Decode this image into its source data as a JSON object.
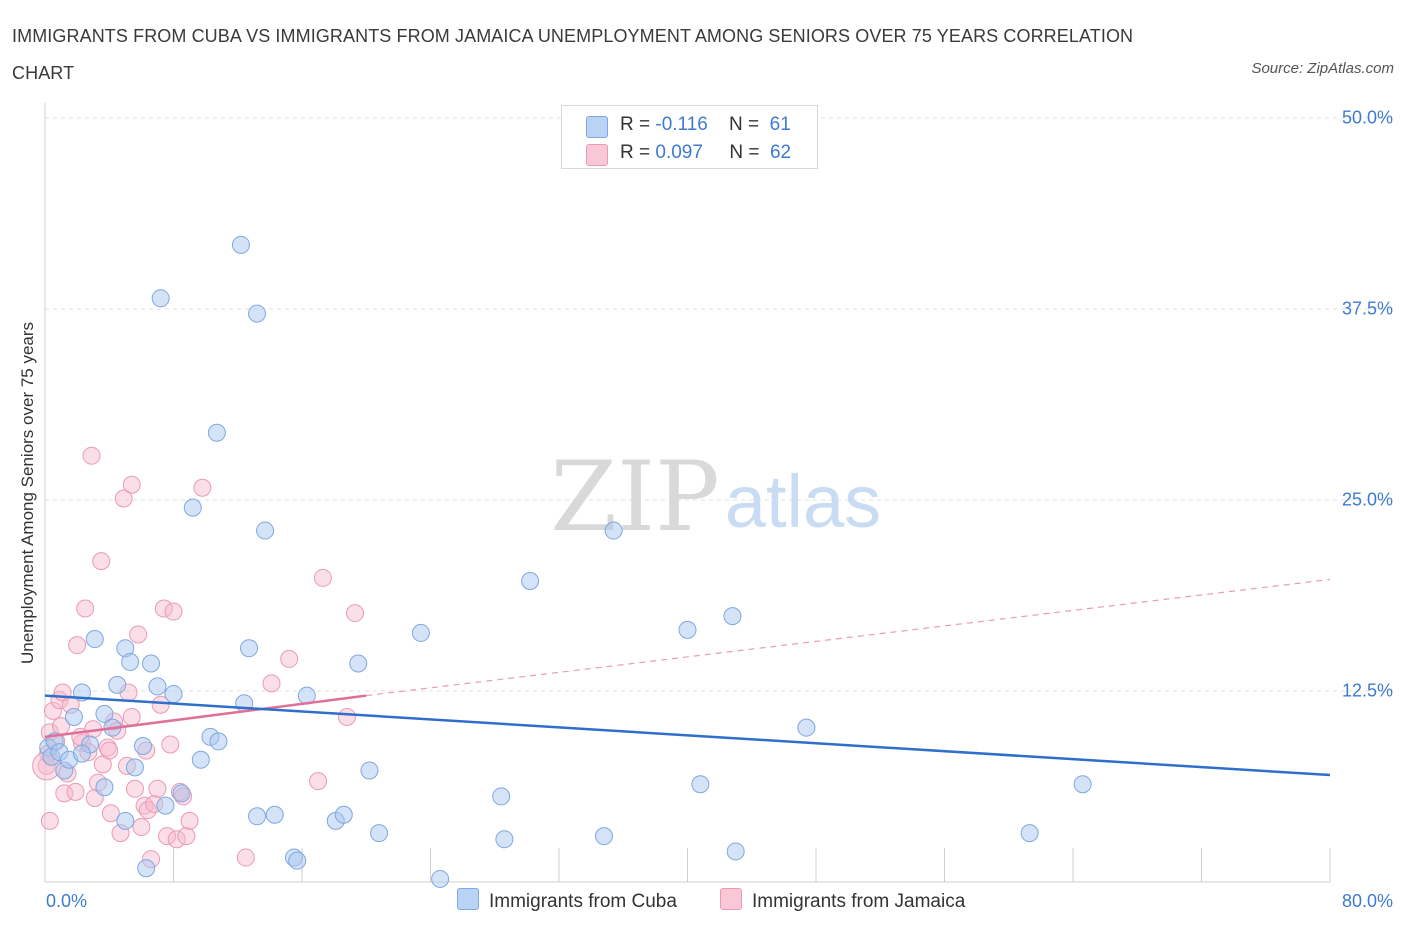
{
  "title": "IMMIGRANTS FROM CUBA VS IMMIGRANTS FROM JAMAICA UNEMPLOYMENT AMONG SENIORS OVER 75 YEARS CORRELATION CHART",
  "source": "Source: ZipAtlas.com",
  "watermark": {
    "zip": "ZIP",
    "atlas": "atlas"
  },
  "legend_top": {
    "cuba": {
      "r_label": "R = ",
      "r_value": "-0.116",
      "n_label": "N = ",
      "n_value": "61"
    },
    "jamaica": {
      "r_label": "R = ",
      "r_value": "0.097",
      "n_label": "N = ",
      "n_value": "62"
    }
  },
  "colors": {
    "cuba_fill": "#a9c8f0",
    "cuba_stroke": "#7fa8de",
    "cuba_line": "#2e6fcc",
    "jamaica_fill": "#f6b9cc",
    "jamaica_stroke": "#eb9ab4",
    "jamaica_line": "#e0709a",
    "tick_text": "#3e7bd0",
    "grid": "#e2e2e2"
  },
  "chart_data": {
    "type": "scatter",
    "title": "IMMIGRANTS FROM CUBA VS IMMIGRANTS FROM JAMAICA UNEMPLOYMENT AMONG SENIORS OVER 75 YEARS CORRELATION CHART",
    "xlabel": "",
    "ylabel": "Unemployment Among Seniors over 75 years",
    "xlim": [
      0,
      80
    ],
    "ylim": [
      0,
      50
    ],
    "x_tick_labels": [
      "0.0%",
      "80.0%"
    ],
    "y_ticks": [
      12.5,
      25.0,
      37.5,
      50.0
    ],
    "y_tick_labels": [
      "12.5%",
      "25.0%",
      "37.5%",
      "50.0%"
    ],
    "grid": true,
    "legend_position": "bottom-center",
    "series": [
      {
        "name": "Immigrants from Cuba",
        "R": -0.116,
        "N": 61,
        "trend": {
          "x": [
            0,
            80
          ],
          "y": [
            12.2,
            7.0
          ],
          "style": "solid"
        },
        "points": [
          [
            0.2,
            8.8
          ],
          [
            0.4,
            8.2
          ],
          [
            0.6,
            9.2
          ],
          [
            0.9,
            8.5
          ],
          [
            1.2,
            7.3
          ],
          [
            1.5,
            8.0
          ],
          [
            1.8,
            10.8
          ],
          [
            2.3,
            12.4
          ],
          [
            2.8,
            9.0
          ],
          [
            3.1,
            15.9
          ],
          [
            3.7,
            11.0
          ],
          [
            4.2,
            10.1
          ],
          [
            4.5,
            12.9
          ],
          [
            5.0,
            15.3
          ],
          [
            5.3,
            14.4
          ],
          [
            5.6,
            7.5
          ],
          [
            6.1,
            8.9
          ],
          [
            6.6,
            14.3
          ],
          [
            7.0,
            12.8
          ],
          [
            7.5,
            5.0
          ],
          [
            8.0,
            12.3
          ],
          [
            9.7,
            8.0
          ],
          [
            10.3,
            9.5
          ],
          [
            10.8,
            9.2
          ],
          [
            12.2,
            41.7
          ],
          [
            13.2,
            37.2
          ],
          [
            7.2,
            38.2
          ],
          [
            10.7,
            29.4
          ],
          [
            9.2,
            24.5
          ],
          [
            13.7,
            23.0
          ],
          [
            12.4,
            11.7
          ],
          [
            12.7,
            15.3
          ],
          [
            13.2,
            4.3
          ],
          [
            14.3,
            4.4
          ],
          [
            15.5,
            1.6
          ],
          [
            15.7,
            1.4
          ],
          [
            16.3,
            12.2
          ],
          [
            18.1,
            4.0
          ],
          [
            18.6,
            4.4
          ],
          [
            19.5,
            14.3
          ],
          [
            20.2,
            7.3
          ],
          [
            20.8,
            3.2
          ],
          [
            23.4,
            16.3
          ],
          [
            24.6,
            0.2
          ],
          [
            28.4,
            5.6
          ],
          [
            28.6,
            2.8
          ],
          [
            30.2,
            19.7
          ],
          [
            34.8,
            3.0
          ],
          [
            35.4,
            23.0
          ],
          [
            40.0,
            16.5
          ],
          [
            40.8,
            6.4
          ],
          [
            42.8,
            17.4
          ],
          [
            43.0,
            2.0
          ],
          [
            47.4,
            10.1
          ],
          [
            61.3,
            3.2
          ],
          [
            64.6,
            6.4
          ],
          [
            2.3,
            8.4
          ],
          [
            3.7,
            6.2
          ],
          [
            5.0,
            4.0
          ],
          [
            6.3,
            0.9
          ],
          [
            8.5,
            5.8
          ]
        ]
      },
      {
        "name": "Immigrants from Jamaica",
        "R": 0.097,
        "N": 62,
        "trend": {
          "x": [
            0,
            20
          ],
          "y": [
            9.5,
            12.2
          ],
          "style": "solid",
          "extended": {
            "x": [
              20,
              80
            ],
            "y": [
              12.2,
              19.8
            ],
            "style": "dashed"
          }
        },
        "points": [
          [
            0.1,
            7.6
          ],
          [
            0.2,
            8.4
          ],
          [
            0.3,
            9.8
          ],
          [
            0.5,
            11.2
          ],
          [
            0.7,
            9.2
          ],
          [
            0.9,
            11.9
          ],
          [
            1.1,
            12.4
          ],
          [
            1.2,
            5.8
          ],
          [
            1.4,
            7.1
          ],
          [
            1.6,
            11.6
          ],
          [
            1.9,
            5.9
          ],
          [
            2.0,
            15.5
          ],
          [
            2.3,
            9.1
          ],
          [
            2.5,
            17.9
          ],
          [
            2.7,
            8.5
          ],
          [
            2.9,
            27.9
          ],
          [
            3.1,
            5.5
          ],
          [
            3.3,
            6.5
          ],
          [
            3.5,
            21.0
          ],
          [
            3.6,
            7.7
          ],
          [
            3.9,
            8.8
          ],
          [
            4.1,
            4.5
          ],
          [
            4.3,
            10.5
          ],
          [
            4.5,
            9.9
          ],
          [
            4.7,
            3.2
          ],
          [
            4.9,
            25.1
          ],
          [
            5.1,
            7.6
          ],
          [
            5.2,
            12.4
          ],
          [
            5.4,
            26.0
          ],
          [
            5.6,
            6.1
          ],
          [
            5.8,
            16.2
          ],
          [
            6.0,
            3.6
          ],
          [
            6.2,
            5.0
          ],
          [
            6.4,
            4.7
          ],
          [
            6.6,
            1.5
          ],
          [
            6.8,
            5.1
          ],
          [
            7.0,
            6.1
          ],
          [
            7.2,
            11.6
          ],
          [
            7.4,
            17.9
          ],
          [
            7.6,
            3.0
          ],
          [
            7.8,
            9.0
          ],
          [
            8.0,
            17.7
          ],
          [
            8.2,
            2.8
          ],
          [
            8.4,
            5.9
          ],
          [
            8.6,
            5.6
          ],
          [
            8.8,
            3.0
          ],
          [
            9.0,
            4.0
          ],
          [
            9.8,
            25.8
          ],
          [
            12.5,
            1.6
          ],
          [
            14.1,
            13.0
          ],
          [
            15.2,
            14.6
          ],
          [
            17.0,
            6.6
          ],
          [
            17.3,
            19.9
          ],
          [
            18.8,
            10.8
          ],
          [
            19.3,
            17.6
          ],
          [
            0.3,
            4.0
          ],
          [
            1.0,
            10.2
          ],
          [
            2.2,
            9.5
          ],
          [
            3.0,
            10.0
          ],
          [
            4.0,
            8.6
          ],
          [
            5.4,
            10.8
          ],
          [
            6.3,
            8.6
          ]
        ]
      }
    ]
  },
  "legend_bottom": {
    "cuba": "Immigrants from Cuba",
    "jamaica": "Immigrants from Jamaica"
  }
}
